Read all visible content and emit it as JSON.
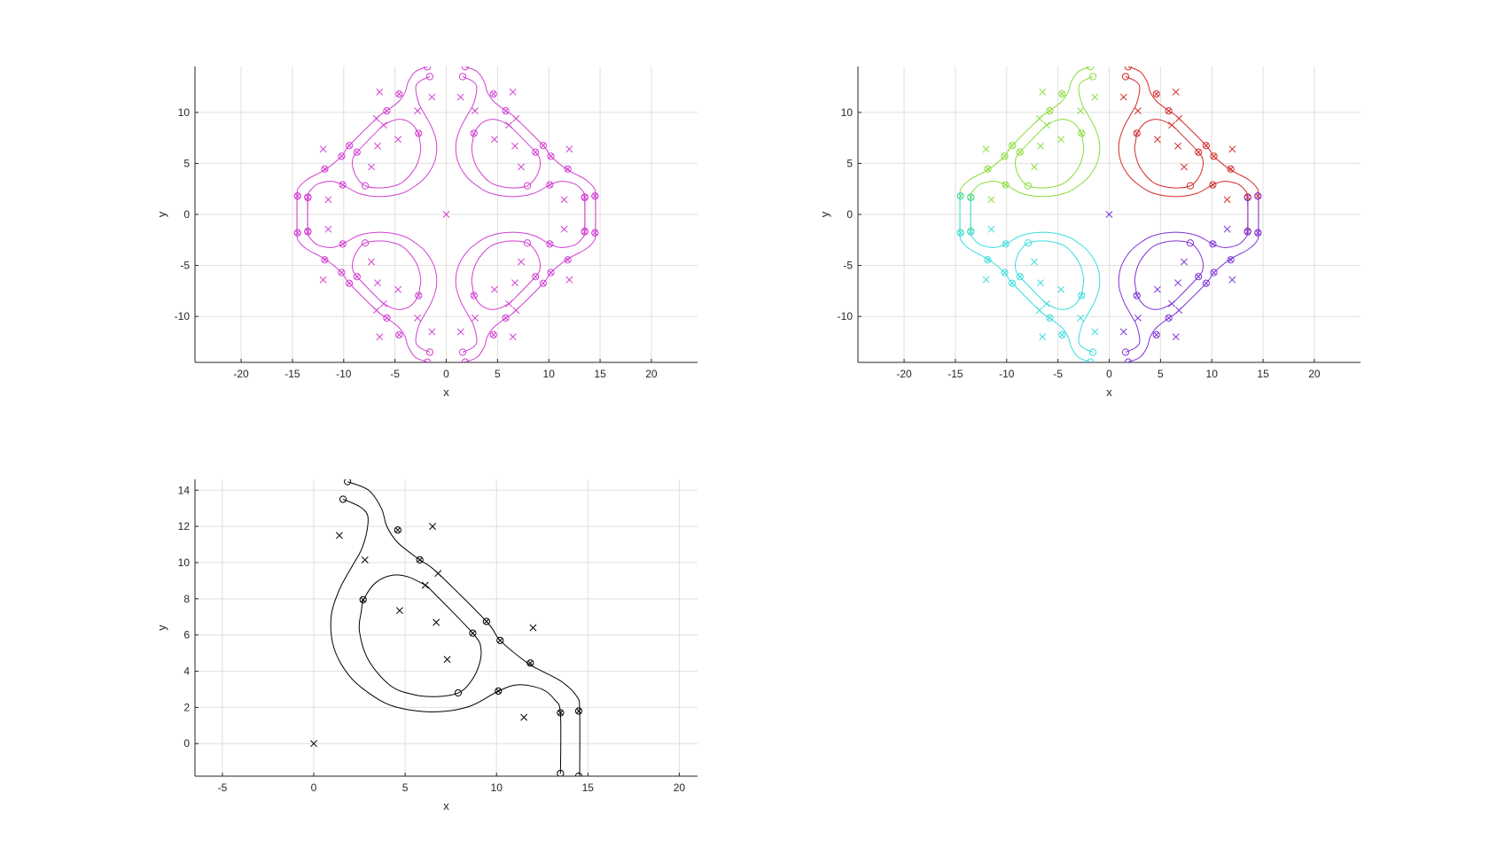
{
  "figure": {
    "background": "#ffffff"
  },
  "chart_data": [
    {
      "id": "p1",
      "type": "line",
      "xlabel": "x",
      "ylabel": "y",
      "xlim": [
        -24.5,
        24.5
      ],
      "ylim": [
        -14.5,
        14.5
      ],
      "xticks": [
        -20,
        -15,
        -10,
        -5,
        0,
        5,
        10,
        15,
        20
      ],
      "yticks": [
        -10,
        -5,
        0,
        5,
        10
      ],
      "grid": true,
      "colors": {
        "Q1": "#d23fd2",
        "Q2": "#d23fd2",
        "Q3": "#d23fd2",
        "Q4": "#d23fd2",
        "center": "#d23fd2"
      }
    },
    {
      "id": "p2",
      "type": "line",
      "xlabel": "x",
      "ylabel": "y",
      "xlim": [
        -24.5,
        24.5
      ],
      "ylim": [
        -14.5,
        14.5
      ],
      "xticks": [
        -20,
        -15,
        -10,
        -5,
        0,
        5,
        10,
        15,
        20
      ],
      "yticks": [
        -10,
        -5,
        0,
        5,
        10
      ],
      "grid": true,
      "colors": {
        "Q1": "#d42a2a",
        "Q2": "#88dc3a",
        "Q3": "#3adcdc",
        "Q4": "#7f33d6",
        "center": "#7f33d6"
      }
    },
    {
      "id": "p3",
      "type": "line",
      "xlabel": "x",
      "ylabel": "y",
      "xlim": [
        -6.5,
        21
      ],
      "ylim": [
        -1.8,
        14.6
      ],
      "xticks": [
        -5,
        0,
        5,
        10,
        15,
        20
      ],
      "yticks": [
        0,
        2,
        4,
        6,
        8,
        10,
        12,
        14
      ],
      "grid": true,
      "colors": {
        "Q1": "#000000",
        "center": "#000000"
      }
    }
  ],
  "geometry_q1": {
    "outer_curve": [
      [
        1.85,
        14.47
      ],
      [
        3.0,
        14.0
      ],
      [
        3.7,
        13.0
      ],
      [
        4.0,
        12.0
      ],
      [
        4.6,
        11.1
      ],
      [
        5.8,
        10.15
      ],
      [
        6.7,
        9.5
      ],
      [
        9.45,
        6.75
      ],
      [
        10.2,
        5.7
      ],
      [
        11.7,
        4.45
      ],
      [
        12.5,
        4.0
      ],
      [
        13.6,
        3.4
      ],
      [
        14.4,
        2.6
      ],
      [
        14.55,
        1.8
      ],
      [
        14.55,
        -1.8
      ]
    ],
    "inner_curve": [
      [
        1.6,
        13.5
      ],
      [
        2.5,
        13.1
      ],
      [
        2.95,
        12.6
      ],
      [
        2.9,
        11.7
      ],
      [
        2.6,
        10.7
      ],
      [
        2.1,
        9.8
      ],
      [
        1.4,
        8.5
      ],
      [
        0.95,
        7.0
      ],
      [
        1.1,
        5.3
      ],
      [
        1.9,
        3.8
      ],
      [
        3.0,
        2.8
      ],
      [
        4.4,
        2.05
      ],
      [
        6.5,
        1.75
      ],
      [
        8.5,
        2.05
      ],
      [
        10.1,
        2.9
      ],
      [
        11.2,
        3.25
      ],
      [
        12.5,
        3.0
      ],
      [
        13.2,
        2.4
      ],
      [
        13.5,
        1.65
      ],
      [
        13.5,
        -1.65
      ]
    ],
    "inner_loop": [
      [
        6.2,
        8.7
      ],
      [
        8.7,
        6.1
      ],
      [
        9.15,
        5.2
      ],
      [
        9.0,
        4.2
      ],
      [
        8.5,
        3.3
      ],
      [
        7.9,
        2.8
      ],
      [
        6.8,
        2.6
      ],
      [
        5.5,
        2.7
      ],
      [
        4.2,
        3.2
      ],
      [
        3.0,
        4.6
      ],
      [
        2.5,
        6.2
      ],
      [
        2.6,
        7.3
      ],
      [
        2.75,
        8.0
      ],
      [
        3.4,
        8.9
      ],
      [
        4.3,
        9.3
      ],
      [
        5.2,
        9.2
      ],
      [
        6.2,
        8.7
      ]
    ],
    "circles": [
      [
        1.85,
        14.47
      ],
      [
        1.6,
        13.5
      ],
      [
        4.6,
        11.8
      ],
      [
        5.8,
        10.15
      ],
      [
        9.45,
        6.75
      ],
      [
        10.2,
        5.7
      ],
      [
        2.7,
        7.95
      ],
      [
        8.7,
        6.1
      ],
      [
        11.85,
        4.45
      ],
      [
        7.9,
        2.8
      ],
      [
        10.1,
        2.9
      ],
      [
        13.5,
        1.7
      ],
      [
        14.5,
        1.8
      ],
      [
        13.5,
        -1.65
      ],
      [
        14.5,
        -1.8
      ]
    ],
    "xcircles": [
      [
        4.6,
        11.8
      ],
      [
        5.8,
        10.15
      ],
      [
        9.45,
        6.75
      ],
      [
        10.2,
        5.7
      ],
      [
        2.7,
        7.95
      ],
      [
        8.7,
        6.1
      ],
      [
        11.85,
        4.45
      ],
      [
        10.1,
        2.9
      ],
      [
        13.5,
        1.7
      ],
      [
        14.5,
        1.8
      ]
    ],
    "crosses": [
      [
        1.4,
        11.5
      ],
      [
        6.5,
        12.0
      ],
      [
        2.8,
        10.15
      ],
      [
        6.8,
        9.4
      ],
      [
        6.1,
        8.75
      ],
      [
        4.7,
        7.35
      ],
      [
        6.7,
        6.7
      ],
      [
        12.0,
        6.4
      ],
      [
        7.3,
        4.65
      ],
      [
        11.5,
        1.45
      ]
    ],
    "center_cross": [
      [
        0,
        0
      ]
    ]
  }
}
